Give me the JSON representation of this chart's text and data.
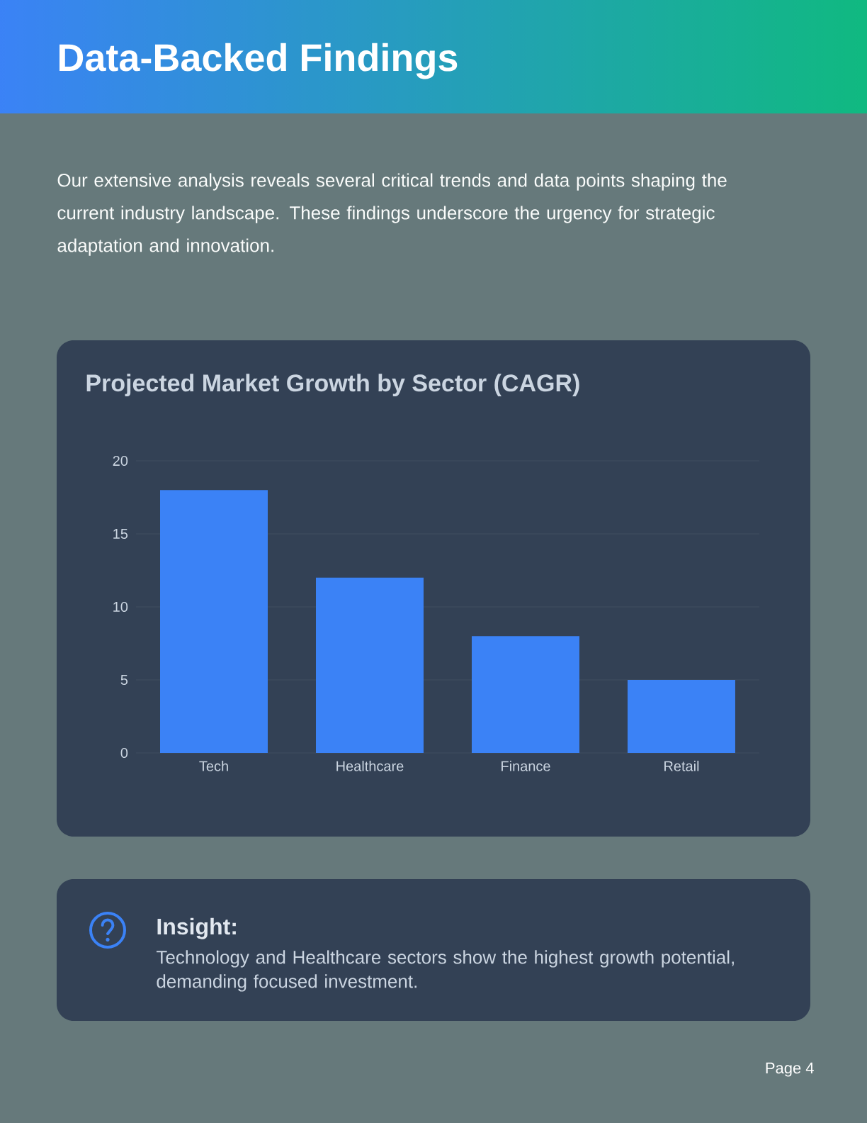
{
  "chart_data": {
    "type": "bar",
    "title": "Projected Market Growth by Sector (CAGR)",
    "categories": [
      "Tech",
      "Healthcare",
      "Finance",
      "Retail"
    ],
    "values": [
      18,
      12,
      8,
      5
    ],
    "color": "#3b82f6",
    "ylim": [
      0,
      20
    ],
    "yticks": [
      0,
      5,
      10,
      15,
      20
    ],
    "grid": "y",
    "annotations": [
      "Data-Backed Findings",
      "Our extensive analysis reveals several critical trends and data points shaping the current industry landscape. These findings underscore the urgency for strategic adaptation and innovation.",
      "Insight:",
      "Technology and Healthcare sectors show the highest growth potential, demanding focused investment.",
      "Page 4"
    ]
  }
}
